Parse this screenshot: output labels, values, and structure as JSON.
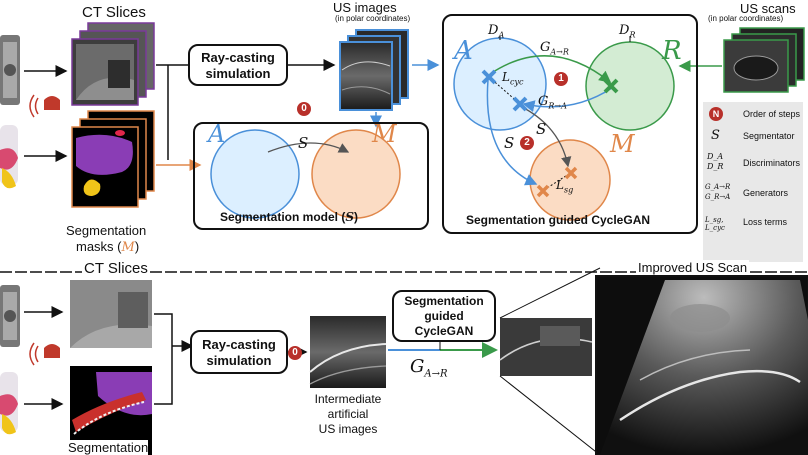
{
  "top": {
    "ct_slices_label": "CT Slices",
    "seg_masks_label_line1": "Segmentation",
    "seg_masks_label_line2_prefix": "masks (",
    "seg_masks_label_symbol": "M",
    "seg_masks_label_line2_suffix": ")",
    "raycast_line1": "Ray-casting",
    "raycast_line2": "simulation",
    "us_images_title": "US  images",
    "us_images_subtitle": "(in polar coordinates)",
    "us_scans_title": "US scans",
    "us_scans_subtitle": "(in polar coordinates)",
    "seg_model": {
      "step_badge": "0",
      "set_a": "A",
      "set_m": "M",
      "arrow_label": "S",
      "caption_prefix": "Segmentation model (",
      "caption_symbol": "S",
      "caption_suffix": ")"
    },
    "cyclegan": {
      "set_a": "A",
      "set_r": "R",
      "set_m": "M",
      "d_a": "D",
      "d_a_sub": "A",
      "d_r": "D",
      "d_r_sub": "R",
      "g_ar": "G",
      "g_ar_sub": "A→R",
      "g_ra": "G",
      "g_ra_sub": "R→A",
      "l_cyc": "L",
      "l_cyc_sub": "cyc",
      "l_sg": "L",
      "l_sg_sub": "sg",
      "s_left": "S",
      "s_right": "S",
      "badge_1": "1",
      "badge_2": "2",
      "caption": "Segmentation guided CycleGAN"
    }
  },
  "legend": {
    "items": [
      {
        "symbol": "N",
        "text": "Order of steps"
      },
      {
        "symbol": "S",
        "text": "Segmentator"
      },
      {
        "symbol": "D_A  D_R",
        "text": "Discriminators"
      },
      {
        "symbol": "G_A→R  G_R→A",
        "text": "Generators"
      },
      {
        "symbol": "L_sg, L_cyc",
        "text": "Loss terms"
      }
    ]
  },
  "bottom": {
    "ct_slices_label": "CT Slices",
    "seg_label": "Segmentation",
    "raycast_line1": "Ray-casting",
    "raycast_line2": "simulation",
    "step_badge": "0",
    "intermediate_line1": "Intermediate",
    "intermediate_line2": "artificial",
    "intermediate_line3": "US images",
    "sg_box_line1": "Segmentation",
    "sg_box_line2": "guided",
    "sg_box_line3": "CycleGAN",
    "generator_label": "G",
    "generator_sub": "A→R",
    "improved_title": "Improved US Scan"
  },
  "colors": {
    "blue": "#4a90d9",
    "blue_fill": "#dcefff",
    "orange": "#e0874a",
    "orange_fill": "#fbdcc4",
    "green": "#3a9a4a",
    "green_fill": "#d3ecd3",
    "purple": "#7a3a9a",
    "badge_red": "#b8302a"
  }
}
